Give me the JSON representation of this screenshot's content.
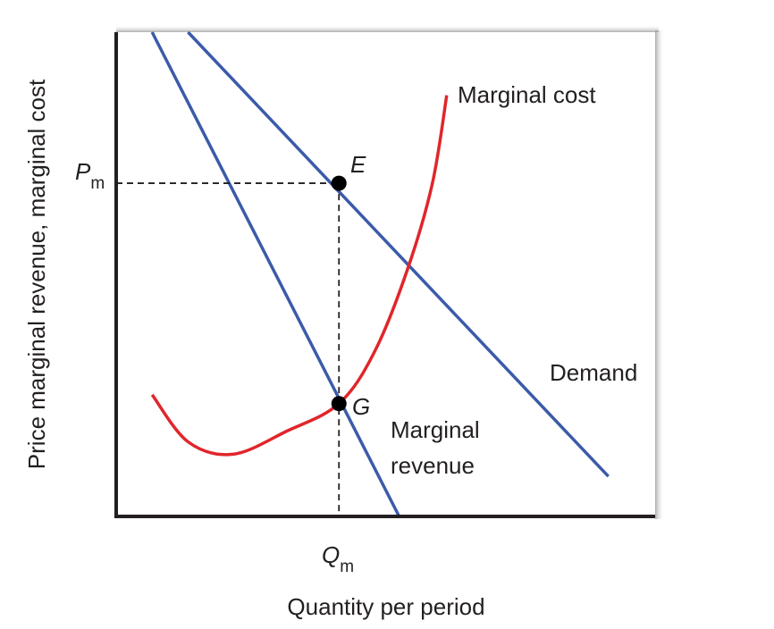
{
  "chart_data": {
    "type": "line",
    "xlabel": "Quantity per period",
    "ylabel": "Price marginal revenue, marginal cost",
    "x_ticks": [
      {
        "main": "Q",
        "sub": "m"
      }
    ],
    "y_ticks": [
      {
        "main": "P",
        "sub": "m"
      }
    ],
    "series": [
      {
        "name": "Demand",
        "color": "#3b5ba9",
        "points": [
          [
            80,
            545
          ],
          [
            548,
            45
          ]
        ]
      },
      {
        "name": "Marginal revenue",
        "color": "#3b5ba9",
        "points": [
          [
            40,
            545
          ],
          [
            315,
            0
          ]
        ]
      },
      {
        "name": "Marginal cost",
        "color": "#e0262b",
        "points": [
          [
            40,
            137
          ],
          [
            80,
            84
          ],
          [
            130,
            70
          ],
          [
            190,
            96
          ],
          [
            248,
            127
          ],
          [
            288,
            186
          ],
          [
            325,
            280
          ],
          [
            352,
            375
          ],
          [
            368,
            474
          ]
        ]
      }
    ],
    "points": [
      {
        "label": "E",
        "x": 248,
        "y": 375
      },
      {
        "label": "G",
        "x": 248,
        "y": 127
      }
    ],
    "series_labels": {
      "marginal_cost": "Marginal cost",
      "demand": "Demand",
      "marginal_revenue_line1": "Marginal",
      "marginal_revenue_line2": "revenue"
    },
    "xlim": [
      0,
      600
    ],
    "ylim": [
      0,
      545
    ],
    "grid": false,
    "colors": {
      "frame": "#231f20",
      "demand": "#3b5ba9",
      "marginal_revenue": "#3b5ba9",
      "marginal_cost": "#e0262b"
    }
  }
}
